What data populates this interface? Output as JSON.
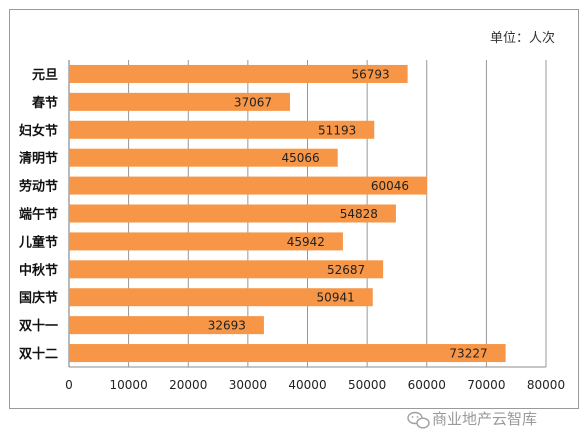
{
  "chart_data": {
    "type": "bar",
    "orientation": "horizontal",
    "unit_label": "单位：人次",
    "categories": [
      "元旦",
      "春节",
      "妇女节",
      "清明节",
      "劳动节",
      "端午节",
      "儿童节",
      "中秋节",
      "国庆节",
      "双十一",
      "双十二"
    ],
    "values": [
      56793,
      37067,
      51193,
      45066,
      60046,
      54828,
      45942,
      52687,
      50941,
      32693,
      73227
    ],
    "value_labels": [
      "56793",
      "37067",
      "51193",
      "45066",
      "60046",
      "54828",
      "45942",
      "52687",
      "50941",
      "32693",
      "73227"
    ],
    "xlim": [
      0,
      80000
    ],
    "xticks": [
      0,
      10000,
      20000,
      30000,
      40000,
      50000,
      60000,
      70000,
      80000
    ],
    "xtick_labels": [
      "0",
      "10000",
      "20000",
      "30000",
      "40000",
      "50000",
      "60000",
      "70000",
      "80000"
    ],
    "grid": true,
    "bar_color": "#F79646"
  },
  "watermark": {
    "text": "商业地产云智库",
    "icon": "wechat-icon"
  }
}
